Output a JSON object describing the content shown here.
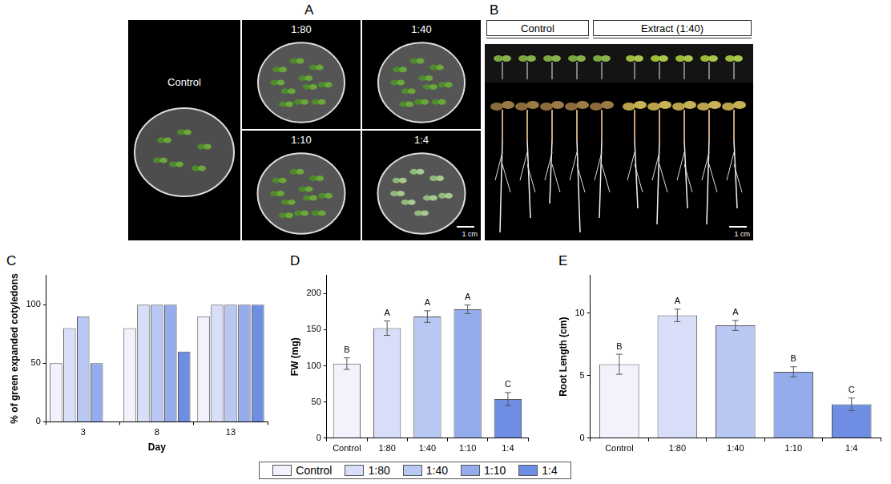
{
  "panels": [
    {
      "label": "A",
      "type": "photo",
      "images": [
        {
          "caption": "Control"
        },
        {
          "caption": "1:80"
        },
        {
          "caption": "1:40"
        },
        {
          "caption": "1:10"
        },
        {
          "caption": "1:4"
        }
      ],
      "scale_bar": "1 cm"
    },
    {
      "label": "B",
      "type": "photo",
      "groups": [
        "Control",
        "Extract (1:40)"
      ],
      "scale_bar": "1 cm"
    }
  ],
  "chart_data": [
    {
      "label": "C",
      "type": "bar",
      "x_label": "Day",
      "y_label": "% of green expanded cotyledons",
      "categories": [
        "3",
        "8",
        "13"
      ],
      "series": [
        {
          "name": "Control",
          "color": "#f1f2fb",
          "values": [
            50,
            80,
            90
          ]
        },
        {
          "name": "1:80",
          "color": "#d8def8",
          "values": [
            80,
            100,
            100
          ]
        },
        {
          "name": "1:40",
          "color": "#b9c7f3",
          "values": [
            90,
            100,
            100
          ]
        },
        {
          "name": "1:10",
          "color": "#94acec",
          "values": [
            50,
            100,
            100
          ]
        },
        {
          "name": "1:4",
          "color": "#6e8ee4",
          "values": [
            0,
            60,
            100
          ]
        }
      ],
      "ylim": [
        0,
        125
      ],
      "yticks": [
        0,
        50,
        100
      ],
      "grid": false,
      "legend": "bottom"
    },
    {
      "label": "D",
      "type": "bar",
      "y_label": "FW (mg)",
      "categories": [
        "Control",
        "1:80",
        "1:40",
        "1:10",
        "1:4"
      ],
      "values": [
        103,
        152,
        168,
        178,
        54
      ],
      "errors": [
        8,
        10,
        8,
        6,
        9
      ],
      "significance": [
        "B",
        "A",
        "A",
        "A",
        "C"
      ],
      "colors": [
        "#f1f2fb",
        "#d8def8",
        "#b9c7f3",
        "#94acec",
        "#6e8ee4"
      ],
      "ylim": [
        0,
        225
      ],
      "yticks": [
        0,
        50,
        100,
        150,
        200
      ],
      "grid": false
    },
    {
      "label": "E",
      "type": "bar",
      "y_label": "Root Length (cm)",
      "categories": [
        "Control",
        "1:80",
        "1:40",
        "1:10",
        "1:4"
      ],
      "values": [
        5.9,
        9.8,
        9.0,
        5.3,
        2.7
      ],
      "errors": [
        0.8,
        0.5,
        0.4,
        0.4,
        0.5
      ],
      "significance": [
        "B",
        "A",
        "A",
        "B",
        "C"
      ],
      "colors": [
        "#f1f2fb",
        "#d8def8",
        "#b9c7f3",
        "#94acec",
        "#6e8ee4"
      ],
      "ylim": [
        0,
        13
      ],
      "yticks": [
        0,
        5,
        10
      ],
      "grid": false
    }
  ]
}
